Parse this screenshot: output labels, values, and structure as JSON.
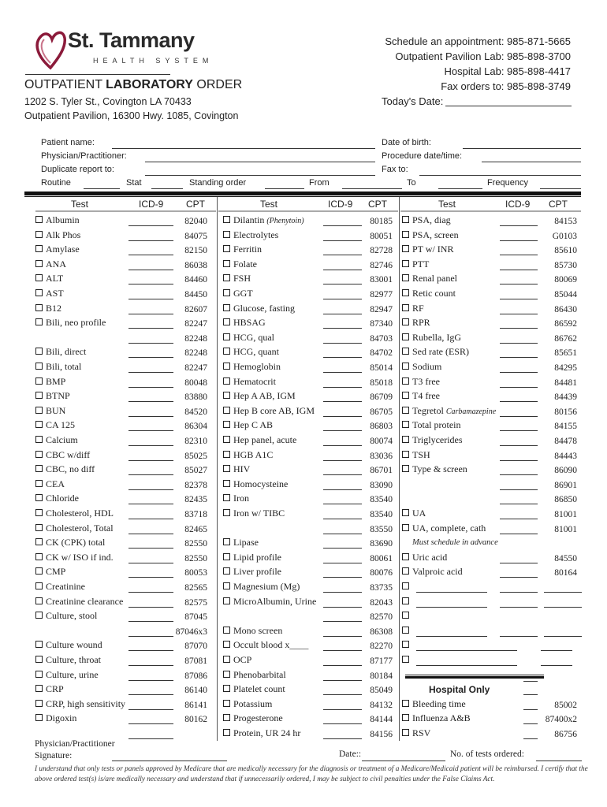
{
  "header": {
    "brand": "St. Tammany",
    "brand_sub": "HEALTH SYSTEM",
    "title_light": "OUTPATIENT ",
    "title_bold": "LABORATORY",
    "title_end": " ORDER",
    "address1": "1202 S. Tyler St., Covington LA 70433",
    "address2": "Outpatient Pavilion, 16300 Hwy. 1085, Covington",
    "contacts": [
      "Schedule an appointment: 985-871-5665",
      "Outpatient Pavilion Lab: 985-898-3700",
      "Hospital Lab: 985-898-4417",
      "Fax orders to: 985-898-3749"
    ],
    "todays_date_label": "Today's Date:",
    "brand_color": "#8b1a3a"
  },
  "fields": {
    "patient_name": "Patient name:",
    "physician": "Physician/Practitioner:",
    "duplicate": "Duplicate report to:",
    "dob": "Date of birth:",
    "procedure": "Procedure date/time:",
    "fax": "Fax to:",
    "routine": "Routine",
    "stat": "Stat",
    "standing": "Standing order",
    "from": "From",
    "to": "To",
    "frequency": "Frequency"
  },
  "columns_header": {
    "test": "Test",
    "icd": "ICD-9",
    "cpt": "CPT"
  },
  "col1": [
    {
      "t": "Albumin",
      "c": "82040"
    },
    {
      "t": "Alk Phos",
      "c": "84075"
    },
    {
      "t": "Amylase",
      "c": "82150"
    },
    {
      "t": "ANA",
      "c": "86038"
    },
    {
      "t": "ALT",
      "c": "84460"
    },
    {
      "t": "AST",
      "c": "84450"
    },
    {
      "t": "B12",
      "c": "82607"
    },
    {
      "t": "Bili, neo profile",
      "c": "82247"
    },
    {
      "c": "82248"
    },
    {
      "t": "Bili, direct",
      "c": "82248"
    },
    {
      "t": "Bili, total",
      "c": "82247"
    },
    {
      "t": "BMP",
      "c": "80048"
    },
    {
      "t": "BTNP",
      "c": "83880"
    },
    {
      "t": "BUN",
      "c": "84520"
    },
    {
      "t": "CA 125",
      "c": "86304"
    },
    {
      "t": "Calcium",
      "c": "82310"
    },
    {
      "t": "CBC w/diff",
      "c": "85025"
    },
    {
      "t": "CBC, no diff",
      "c": "85027"
    },
    {
      "t": "CEA",
      "c": "82378"
    },
    {
      "t": "Chloride",
      "c": "82435"
    },
    {
      "t": "Cholesterol, HDL",
      "c": "83718"
    },
    {
      "t": "Cholesterol, Total",
      "c": "82465"
    },
    {
      "t": "CK (CPK) total",
      "c": "82550"
    },
    {
      "t": "CK w/ ISO if ind.",
      "c": "82550"
    },
    {
      "t": "CMP",
      "c": "80053"
    },
    {
      "t": "Creatinine",
      "c": "82565"
    },
    {
      "t": "Creatinine clearance",
      "c": "82575"
    },
    {
      "t": "Culture, stool",
      "c": "87045"
    },
    {
      "c": "87046x3"
    },
    {
      "t": "Culture wound",
      "c": "87070"
    },
    {
      "t": "Culture, throat",
      "c": "87081"
    },
    {
      "t": "Culture, urine",
      "c": "87086"
    },
    {
      "t": "CRP",
      "c": "86140"
    },
    {
      "t": "CRP, high sensitivity",
      "c": "86141"
    },
    {
      "t": "Digoxin",
      "c": "80162"
    },
    {}
  ],
  "col2": [
    {
      "t": "Dilantin ",
      "i": "(Phenytoin)",
      "c": "80185"
    },
    {
      "t": "Electrolytes",
      "c": "80051"
    },
    {
      "t": "Ferritin",
      "c": "82728"
    },
    {
      "t": "Folate",
      "c": "82746"
    },
    {
      "t": "FSH",
      "c": "83001"
    },
    {
      "t": "GGT",
      "c": "82977"
    },
    {
      "t": "Glucose, fasting",
      "c": "82947"
    },
    {
      "t": "HBSAG",
      "c": "87340"
    },
    {
      "t": "HCG, qual",
      "c": "84703"
    },
    {
      "t": "HCG, quant",
      "c": "84702"
    },
    {
      "t": "Hemoglobin",
      "c": "85014"
    },
    {
      "t": "Hematocrit",
      "c": "85018"
    },
    {
      "t": "Hep A AB, IGM",
      "c": "86709"
    },
    {
      "t": "Hep B core AB, IGM",
      "c": "86705"
    },
    {
      "t": "Hep C AB",
      "c": "86803"
    },
    {
      "t": "Hep panel, acute",
      "c": "80074"
    },
    {
      "t": "HGB A1C",
      "c": "83036"
    },
    {
      "t": "HIV",
      "c": "86701"
    },
    {
      "t": "Homocysteine",
      "c": "83090"
    },
    {
      "t": "Iron",
      "c": "83540"
    },
    {
      "t": "Iron w/ TIBC",
      "c": "83540"
    },
    {
      "c": "83550"
    },
    {
      "t": "Lipase",
      "c": "83690"
    },
    {
      "t": "Lipid profile",
      "c": "80061"
    },
    {
      "t": "Liver profile",
      "c": "80076"
    },
    {
      "t": "Magnesium (Mg)",
      "c": "83735"
    },
    {
      "t": "MicroAlbumin, Urine",
      "c": "82043"
    },
    {
      "c": "82570"
    },
    {
      "t": "Mono screen",
      "c": "86308"
    },
    {
      "t": "Occult blood x____",
      "c": "82270"
    },
    {
      "t": "OCP",
      "c": "87177"
    },
    {
      "t": "Phenobarbital",
      "c": "80184"
    },
    {
      "t": "Platelet count",
      "c": "85049"
    },
    {
      "t": "Potassium",
      "c": "84132"
    },
    {
      "t": "Progesterone",
      "c": "84144"
    },
    {
      "t": "Protein, UR 24 hr",
      "c": "84156"
    }
  ],
  "col3": [
    {
      "t": "PSA, diag",
      "c": "84153"
    },
    {
      "t": "PSA, screen",
      "c": "G0103"
    },
    {
      "t": "PT w/ INR",
      "c": "85610"
    },
    {
      "t": "PTT",
      "c": "85730"
    },
    {
      "t": "Renal panel",
      "c": "80069"
    },
    {
      "t": "Retic count",
      "c": "85044"
    },
    {
      "t": "RF",
      "c": "86430"
    },
    {
      "t": "RPR",
      "c": "86592"
    },
    {
      "t": "Rubella, IgG",
      "c": "86762"
    },
    {
      "t": "Sed rate (ESR)",
      "c": "85651"
    },
    {
      "t": "Sodium",
      "c": "84295"
    },
    {
      "t": "T3 free",
      "c": "84481"
    },
    {
      "t": "T4 free",
      "c": "84439"
    },
    {
      "t": "Tegretol ",
      "i": "Carbamazepine",
      "c": "80156"
    },
    {
      "t": "Total protein",
      "c": "84155"
    },
    {
      "t": "Triglycerides",
      "c": "84478"
    },
    {
      "t": "TSH",
      "c": "84443"
    },
    {
      "t": "Type & screen",
      "c": "86090"
    },
    {
      "c": "86901"
    },
    {
      "c": "86850"
    },
    {
      "t": "UA",
      "c": "81001"
    },
    {
      "t": "UA, complete, cath",
      "c": "81001"
    },
    {
      "note": "Must schedule in advance",
      "noicd": true
    },
    {
      "t": "Uric acid",
      "c": "84550"
    },
    {
      "t": "Valproic acid",
      "c": "80164"
    },
    {
      "cbonly": true,
      "nl": true,
      "cl": true
    },
    {
      "cbonly": true,
      "nl": true,
      "cl": true
    },
    {
      "cbonly": true,
      "noicd": true
    },
    {
      "cbonly": true,
      "nl": true,
      "cl": true
    },
    {
      "cbonly": true,
      "nl": true,
      "long": true,
      "noicd": true,
      "cl": true
    },
    {
      "cbonly": true,
      "nl": true,
      "long": true,
      "noicd": true,
      "cl": true
    },
    {
      "double": true,
      "noicd": true
    },
    {
      "heading": "Hospital Only",
      "short": true
    },
    {
      "t": "Bleeding time",
      "c": "85002",
      "short": true
    },
    {
      "t": "Influenza A&B",
      "c": "87400x2",
      "short": true
    },
    {
      "t": "RSV",
      "c": "86756",
      "short": true
    }
  ],
  "footer": {
    "sig_label1": "Physician/Practitioner",
    "sig_label2": "Signature:",
    "date_label": "Date::",
    "tests_label": "No. of tests ordered:",
    "disclaimer1": "I understand that only tests or panels approved by Medicare that are medically necessary for the diagnosis or treatment of a Medicare/Medicaid patient will be reimbursed. I certify that the",
    "disclaimer2": "above ordered test(s) is/are medically necessary and understand that if unnecessarily ordered, I may be subject to civil penalties under the False Claims Act."
  }
}
